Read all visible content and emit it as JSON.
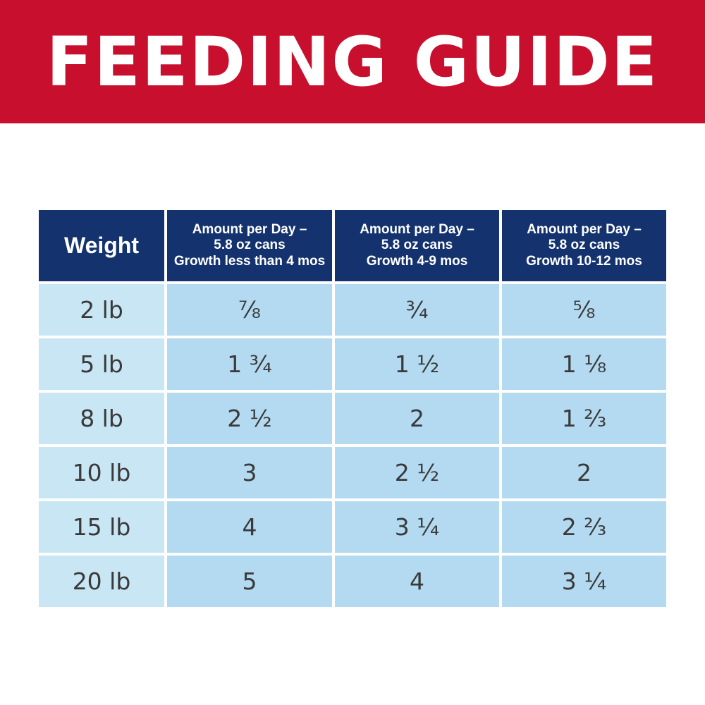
{
  "colors": {
    "banner": "#c8102e",
    "header": "#14336e",
    "weight_cell": "#c9e6f5",
    "value_cell": "#b3daf0"
  },
  "title": "FEEDING GUIDE",
  "table": {
    "headers": [
      {
        "lines": [
          "Weight"
        ]
      },
      {
        "lines": [
          "Amount per Day –",
          "5.8 oz cans",
          "Growth less than 4 mos"
        ]
      },
      {
        "lines": [
          "Amount per Day –",
          "5.8 oz cans",
          "Growth 4-9 mos"
        ]
      },
      {
        "lines": [
          "Amount per Day –",
          "5.8 oz cans",
          "Growth 10-12 mos"
        ]
      }
    ],
    "rows": [
      {
        "weight": "2 lb",
        "values": [
          "⅞",
          "¾",
          "⅝"
        ]
      },
      {
        "weight": "5 lb",
        "values": [
          "1 ¾",
          "1 ½",
          "1 ⅛"
        ]
      },
      {
        "weight": "8 lb",
        "values": [
          "2 ½",
          "2",
          "1 ⅔"
        ]
      },
      {
        "weight": "10 lb",
        "values": [
          "3",
          "2 ½",
          "2"
        ]
      },
      {
        "weight": "15 lb",
        "values": [
          "4",
          "3 ¼",
          "2 ⅔"
        ]
      },
      {
        "weight": "20 lb",
        "values": [
          "5",
          "4",
          "3 ¼"
        ]
      }
    ]
  }
}
